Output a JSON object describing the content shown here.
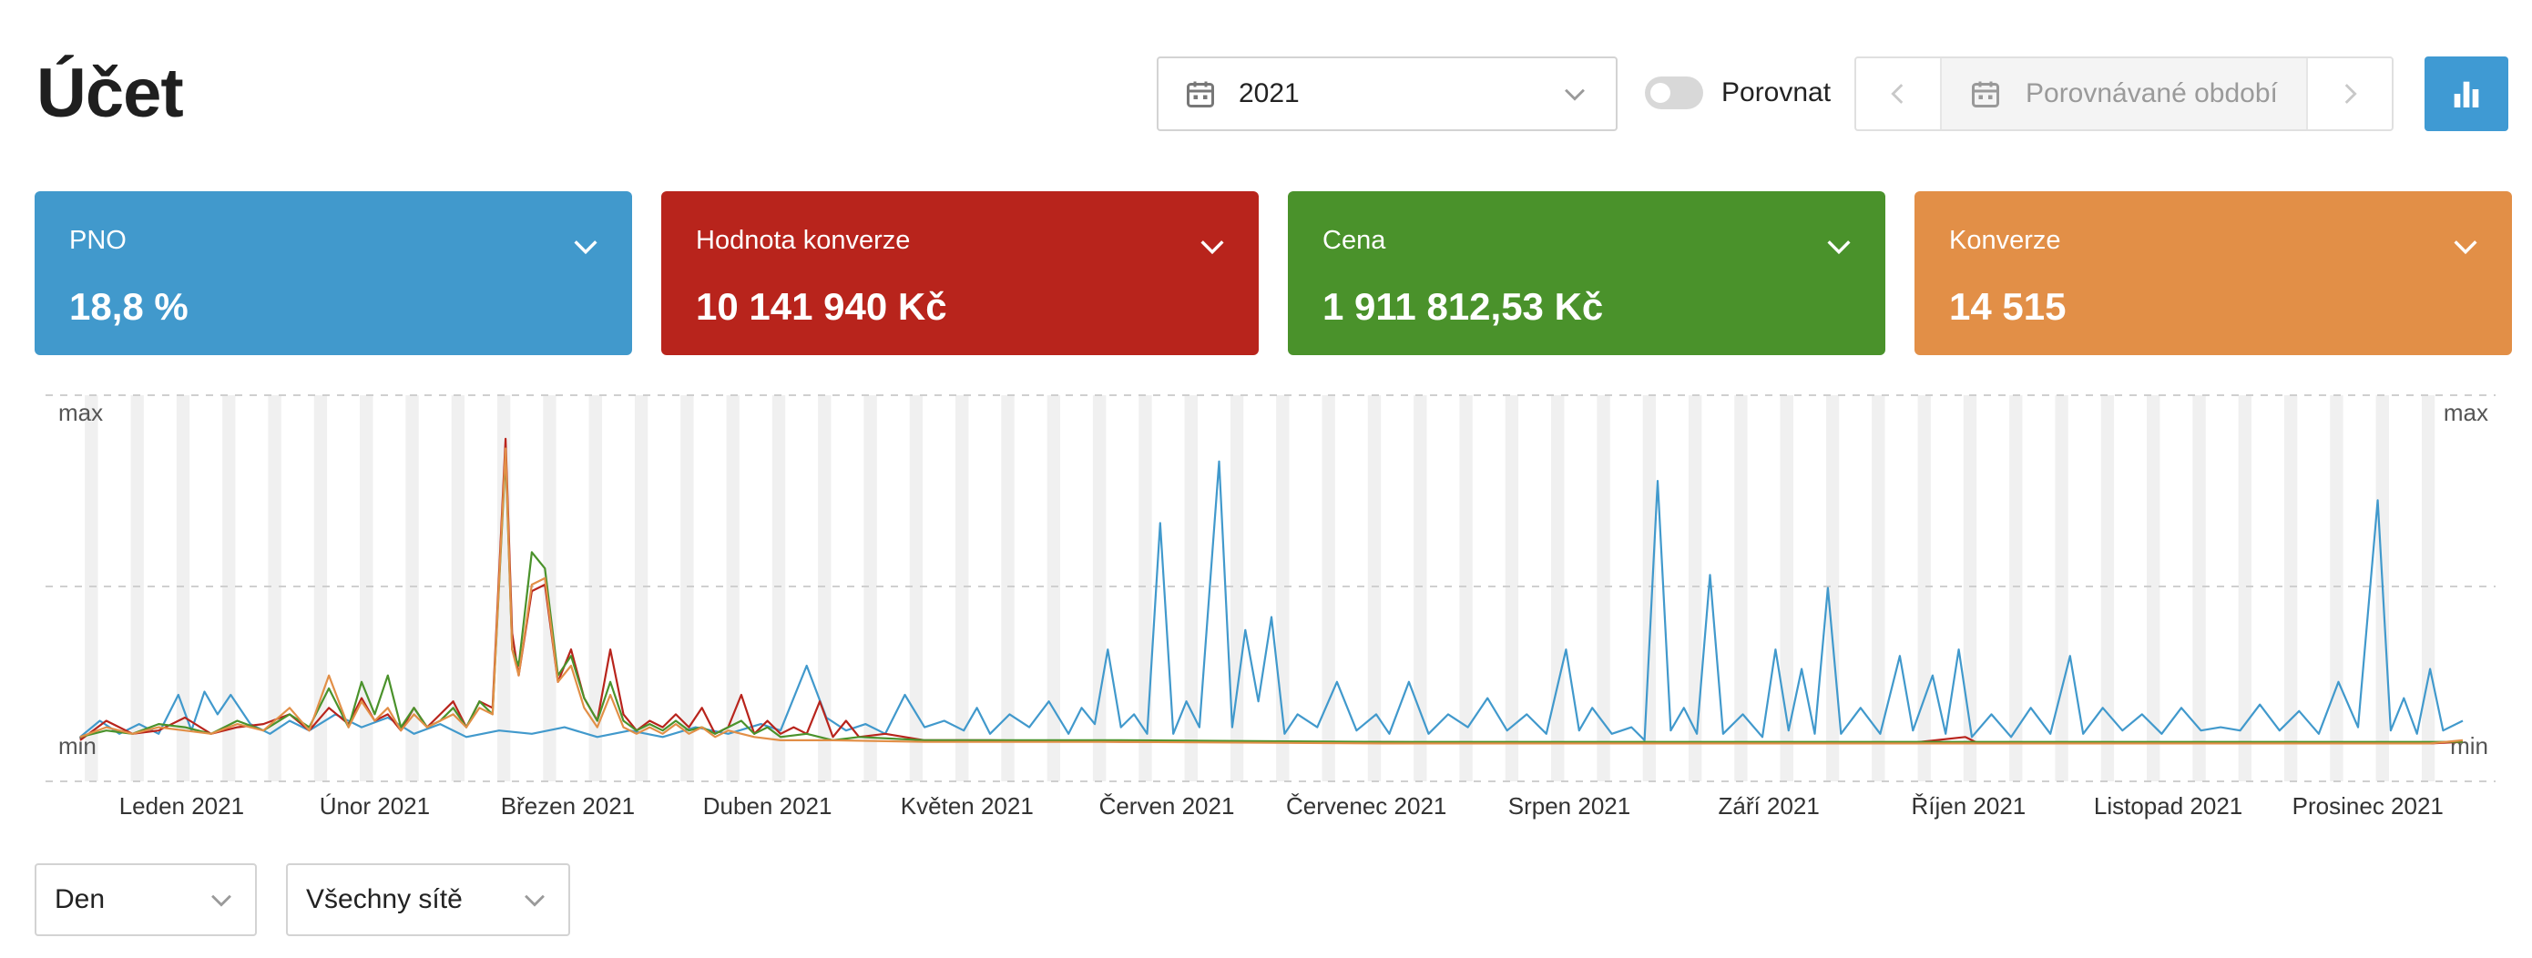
{
  "page": {
    "title": "Účet"
  },
  "toolbar": {
    "year_value": "2021",
    "compare_label": "Porovnat",
    "compare_enabled": false,
    "compare_period_placeholder": "Porovnávané období"
  },
  "colors": {
    "pno": "#4199cc",
    "hodnota_konverze": "#b8241c",
    "cena": "#4a922b",
    "konverze": "#e28f47",
    "chart_button": "#3f9ad3"
  },
  "cards": [
    {
      "name": "PNO",
      "value": "18,8 %"
    },
    {
      "name": "Hodnota konverze",
      "value": "10 141 940 Kč"
    },
    {
      "name": "Cena",
      "value": "1 911 812,53 Kč"
    },
    {
      "name": "Konverze",
      "value": "14 515"
    }
  ],
  "chart_data": {
    "type": "line",
    "y_top_label": "max",
    "y_bottom_label": "min",
    "y_right_top_label": "max",
    "y_right_bottom_label": "min",
    "x_labels": [
      "Leden 2021",
      "Únor 2021",
      "Březen 2021",
      "Duben 2021",
      "Květen 2021",
      "Červen 2021",
      "Červenec 2021",
      "Srpen 2021",
      "Září 2021",
      "Říjen 2021",
      "Listopad 2021",
      "Prosinec 2021"
    ],
    "x_range_days": [
      1,
      365
    ],
    "y_range_normalized": [
      0,
      1
    ],
    "series": [
      {
        "key": "pno",
        "color": "#4199cc",
        "points": [
          [
            1,
            0.03
          ],
          [
            4,
            0.08
          ],
          [
            7,
            0.04
          ],
          [
            10,
            0.07
          ],
          [
            13,
            0.04
          ],
          [
            16,
            0.16
          ],
          [
            18,
            0.05
          ],
          [
            20,
            0.17
          ],
          [
            22,
            0.1
          ],
          [
            24,
            0.16
          ],
          [
            27,
            0.07
          ],
          [
            30,
            0.04
          ],
          [
            33,
            0.08
          ],
          [
            36,
            0.05
          ],
          [
            40,
            0.1
          ],
          [
            44,
            0.06
          ],
          [
            48,
            0.09
          ],
          [
            52,
            0.04
          ],
          [
            56,
            0.07
          ],
          [
            60,
            0.03
          ],
          [
            65,
            0.05
          ],
          [
            70,
            0.04
          ],
          [
            75,
            0.06
          ],
          [
            80,
            0.03
          ],
          [
            85,
            0.05
          ],
          [
            90,
            0.03
          ],
          [
            95,
            0.06
          ],
          [
            100,
            0.04
          ],
          [
            105,
            0.07
          ],
          [
            108,
            0.05
          ],
          [
            112,
            0.25
          ],
          [
            115,
            0.09
          ],
          [
            118,
            0.05
          ],
          [
            121,
            0.07
          ],
          [
            124,
            0.04
          ],
          [
            127,
            0.16
          ],
          [
            130,
            0.06
          ],
          [
            133,
            0.08
          ],
          [
            136,
            0.05
          ],
          [
            138,
            0.12
          ],
          [
            140,
            0.04
          ],
          [
            143,
            0.1
          ],
          [
            146,
            0.06
          ],
          [
            149,
            0.14
          ],
          [
            152,
            0.04
          ],
          [
            154,
            0.12
          ],
          [
            156,
            0.07
          ],
          [
            158,
            0.3
          ],
          [
            160,
            0.06
          ],
          [
            162,
            0.1
          ],
          [
            164,
            0.04
          ],
          [
            166,
            0.69
          ],
          [
            168,
            0.04
          ],
          [
            170,
            0.14
          ],
          [
            172,
            0.06
          ],
          [
            175,
            0.88
          ],
          [
            177,
            0.06
          ],
          [
            179,
            0.36
          ],
          [
            181,
            0.14
          ],
          [
            183,
            0.4
          ],
          [
            185,
            0.04
          ],
          [
            187,
            0.1
          ],
          [
            190,
            0.06
          ],
          [
            193,
            0.2
          ],
          [
            196,
            0.05
          ],
          [
            199,
            0.1
          ],
          [
            201,
            0.04
          ],
          [
            204,
            0.2
          ],
          [
            207,
            0.04
          ],
          [
            210,
            0.1
          ],
          [
            213,
            0.06
          ],
          [
            216,
            0.15
          ],
          [
            219,
            0.05
          ],
          [
            222,
            0.1
          ],
          [
            225,
            0.04
          ],
          [
            228,
            0.3
          ],
          [
            230,
            0.05
          ],
          [
            232,
            0.12
          ],
          [
            235,
            0.04
          ],
          [
            238,
            0.06
          ],
          [
            240,
            0.02
          ],
          [
            242,
            0.82
          ],
          [
            244,
            0.05
          ],
          [
            246,
            0.12
          ],
          [
            248,
            0.04
          ],
          [
            250,
            0.53
          ],
          [
            252,
            0.04
          ],
          [
            255,
            0.1
          ],
          [
            258,
            0.03
          ],
          [
            260,
            0.3
          ],
          [
            262,
            0.05
          ],
          [
            264,
            0.24
          ],
          [
            266,
            0.04
          ],
          [
            268,
            0.49
          ],
          [
            270,
            0.04
          ],
          [
            273,
            0.12
          ],
          [
            276,
            0.04
          ],
          [
            279,
            0.28
          ],
          [
            281,
            0.05
          ],
          [
            284,
            0.22
          ],
          [
            286,
            0.04
          ],
          [
            288,
            0.3
          ],
          [
            290,
            0.03
          ],
          [
            293,
            0.1
          ],
          [
            296,
            0.03
          ],
          [
            299,
            0.12
          ],
          [
            302,
            0.04
          ],
          [
            305,
            0.28
          ],
          [
            307,
            0.04
          ],
          [
            310,
            0.12
          ],
          [
            313,
            0.05
          ],
          [
            316,
            0.1
          ],
          [
            319,
            0.04
          ],
          [
            322,
            0.12
          ],
          [
            325,
            0.05
          ],
          [
            328,
            0.06
          ],
          [
            331,
            0.05
          ],
          [
            334,
            0.13
          ],
          [
            337,
            0.05
          ],
          [
            340,
            0.11
          ],
          [
            343,
            0.04
          ],
          [
            346,
            0.2
          ],
          [
            349,
            0.06
          ],
          [
            352,
            0.76
          ],
          [
            354,
            0.05
          ],
          [
            356,
            0.15
          ],
          [
            358,
            0.04
          ],
          [
            360,
            0.24
          ],
          [
            362,
            0.05
          ],
          [
            365,
            0.08
          ]
        ]
      },
      {
        "key": "hodnota_konverze",
        "color": "#b8241c",
        "points": [
          [
            1,
            0.02
          ],
          [
            5,
            0.08
          ],
          [
            9,
            0.04
          ],
          [
            13,
            0.05
          ],
          [
            17,
            0.09
          ],
          [
            21,
            0.04
          ],
          [
            25,
            0.06
          ],
          [
            29,
            0.07
          ],
          [
            33,
            0.1
          ],
          [
            36,
            0.05
          ],
          [
            39,
            0.12
          ],
          [
            42,
            0.07
          ],
          [
            44,
            0.15
          ],
          [
            46,
            0.08
          ],
          [
            48,
            0.1
          ],
          [
            50,
            0.05
          ],
          [
            52,
            0.12
          ],
          [
            54,
            0.06
          ],
          [
            56,
            0.1
          ],
          [
            58,
            0.14
          ],
          [
            60,
            0.06
          ],
          [
            62,
            0.14
          ],
          [
            64,
            0.12
          ],
          [
            66,
            0.95
          ],
          [
            67,
            0.35
          ],
          [
            68,
            0.22
          ],
          [
            70,
            0.48
          ],
          [
            72,
            0.5
          ],
          [
            74,
            0.2
          ],
          [
            76,
            0.3
          ],
          [
            78,
            0.15
          ],
          [
            80,
            0.08
          ],
          [
            82,
            0.3
          ],
          [
            84,
            0.1
          ],
          [
            86,
            0.05
          ],
          [
            88,
            0.08
          ],
          [
            90,
            0.06
          ],
          [
            92,
            0.1
          ],
          [
            94,
            0.06
          ],
          [
            96,
            0.12
          ],
          [
            98,
            0.04
          ],
          [
            100,
            0.06
          ],
          [
            102,
            0.16
          ],
          [
            104,
            0.04
          ],
          [
            106,
            0.08
          ],
          [
            108,
            0.04
          ],
          [
            110,
            0.06
          ],
          [
            112,
            0.04
          ],
          [
            114,
            0.14
          ],
          [
            116,
            0.03
          ],
          [
            118,
            0.08
          ],
          [
            120,
            0.03
          ],
          [
            124,
            0.04
          ],
          [
            130,
            0.02
          ],
          [
            140,
            0.02
          ],
          [
            160,
            0.015
          ],
          [
            200,
            0.015
          ],
          [
            220,
            0.01
          ],
          [
            260,
            0.01
          ],
          [
            280,
            0.01
          ],
          [
            289,
            0.03
          ],
          [
            291,
            0.01
          ],
          [
            320,
            0.01
          ],
          [
            360,
            0.01
          ],
          [
            365,
            0.015
          ]
        ]
      },
      {
        "key": "cena",
        "color": "#4a922b",
        "points": [
          [
            1,
            0.03
          ],
          [
            5,
            0.05
          ],
          [
            9,
            0.04
          ],
          [
            13,
            0.07
          ],
          [
            17,
            0.06
          ],
          [
            21,
            0.04
          ],
          [
            25,
            0.08
          ],
          [
            29,
            0.05
          ],
          [
            33,
            0.1
          ],
          [
            36,
            0.06
          ],
          [
            39,
            0.18
          ],
          [
            42,
            0.06
          ],
          [
            44,
            0.2
          ],
          [
            46,
            0.1
          ],
          [
            48,
            0.22
          ],
          [
            50,
            0.06
          ],
          [
            52,
            0.12
          ],
          [
            54,
            0.06
          ],
          [
            56,
            0.08
          ],
          [
            58,
            0.12
          ],
          [
            60,
            0.06
          ],
          [
            62,
            0.14
          ],
          [
            64,
            0.1
          ],
          [
            66,
            0.9
          ],
          [
            67,
            0.3
          ],
          [
            68,
            0.25
          ],
          [
            70,
            0.6
          ],
          [
            72,
            0.55
          ],
          [
            74,
            0.22
          ],
          [
            76,
            0.28
          ],
          [
            78,
            0.15
          ],
          [
            80,
            0.08
          ],
          [
            82,
            0.2
          ],
          [
            84,
            0.08
          ],
          [
            86,
            0.05
          ],
          [
            88,
            0.07
          ],
          [
            90,
            0.05
          ],
          [
            92,
            0.08
          ],
          [
            94,
            0.05
          ],
          [
            96,
            0.06
          ],
          [
            98,
            0.04
          ],
          [
            100,
            0.06
          ],
          [
            102,
            0.08
          ],
          [
            104,
            0.04
          ],
          [
            106,
            0.06
          ],
          [
            108,
            0.03
          ],
          [
            112,
            0.04
          ],
          [
            116,
            0.02
          ],
          [
            120,
            0.03
          ],
          [
            130,
            0.02
          ],
          [
            160,
            0.02
          ],
          [
            200,
            0.015
          ],
          [
            240,
            0.015
          ],
          [
            280,
            0.015
          ],
          [
            320,
            0.015
          ],
          [
            365,
            0.015
          ]
        ]
      },
      {
        "key": "konverze",
        "color": "#e28f47",
        "points": [
          [
            1,
            0.03
          ],
          [
            5,
            0.06
          ],
          [
            9,
            0.04
          ],
          [
            13,
            0.06
          ],
          [
            17,
            0.05
          ],
          [
            21,
            0.04
          ],
          [
            25,
            0.07
          ],
          [
            29,
            0.05
          ],
          [
            33,
            0.12
          ],
          [
            36,
            0.05
          ],
          [
            39,
            0.22
          ],
          [
            42,
            0.06
          ],
          [
            44,
            0.14
          ],
          [
            46,
            0.08
          ],
          [
            48,
            0.12
          ],
          [
            50,
            0.05
          ],
          [
            52,
            0.1
          ],
          [
            54,
            0.06
          ],
          [
            56,
            0.08
          ],
          [
            58,
            0.1
          ],
          [
            60,
            0.06
          ],
          [
            62,
            0.12
          ],
          [
            64,
            0.1
          ],
          [
            66,
            0.92
          ],
          [
            67,
            0.3
          ],
          [
            68,
            0.22
          ],
          [
            70,
            0.5
          ],
          [
            72,
            0.52
          ],
          [
            74,
            0.2
          ],
          [
            76,
            0.25
          ],
          [
            78,
            0.12
          ],
          [
            80,
            0.06
          ],
          [
            82,
            0.16
          ],
          [
            84,
            0.06
          ],
          [
            86,
            0.04
          ],
          [
            88,
            0.06
          ],
          [
            90,
            0.04
          ],
          [
            92,
            0.07
          ],
          [
            94,
            0.04
          ],
          [
            96,
            0.06
          ],
          [
            98,
            0.03
          ],
          [
            100,
            0.05
          ],
          [
            104,
            0.03
          ],
          [
            108,
            0.02
          ],
          [
            116,
            0.02
          ],
          [
            130,
            0.015
          ],
          [
            160,
            0.015
          ],
          [
            200,
            0.01
          ],
          [
            240,
            0.01
          ],
          [
            280,
            0.01
          ],
          [
            320,
            0.01
          ],
          [
            360,
            0.01
          ],
          [
            365,
            0.02
          ]
        ]
      }
    ]
  },
  "filters": {
    "period_value": "Den",
    "network_value": "Všechny sítě"
  }
}
